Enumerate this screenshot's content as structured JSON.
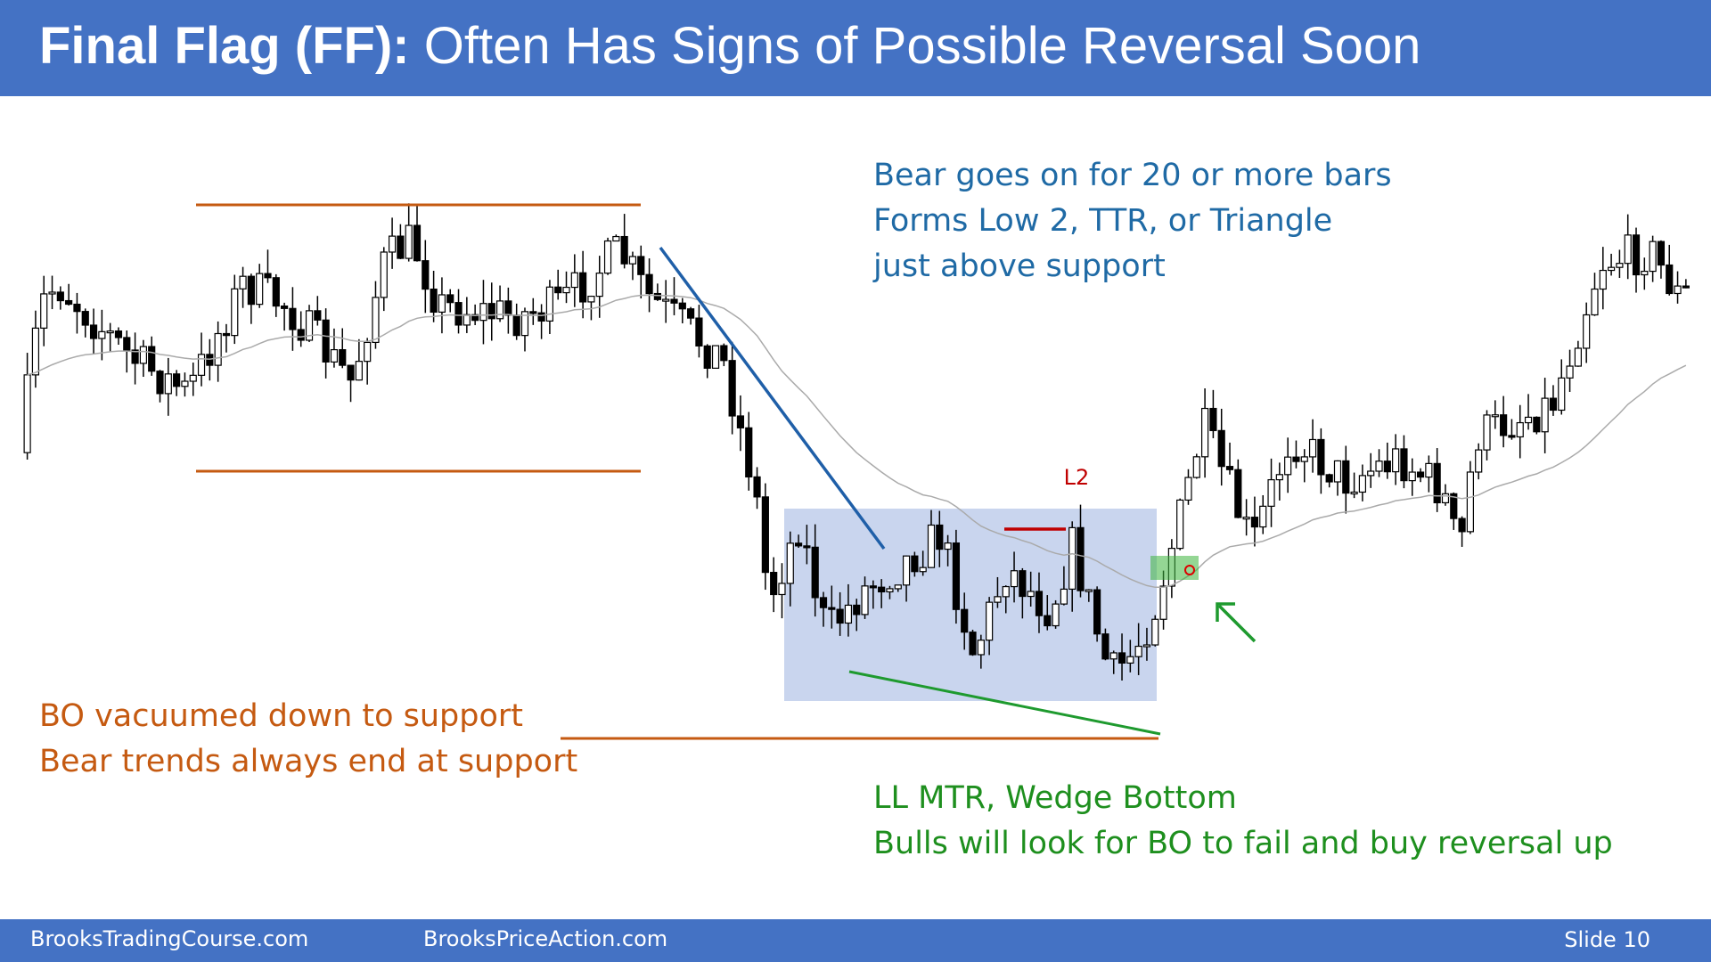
{
  "header": {
    "title_bold": "Final Flag (FF):",
    "title_rest": "Often Has Signs of Possible Reversal Soon"
  },
  "notes": {
    "bear": [
      "Bear goes on for 20 or more bars",
      "Forms Low 2, TTR, or Triangle",
      "just above support"
    ],
    "support": [
      "BO vacuumed down to support",
      "Bear trends always end at support"
    ],
    "bulls": [
      "LL MTR, Wedge Bottom",
      "Bulls will look for BO to fail and buy reversal up"
    ],
    "signal": "L2"
  },
  "footer": {
    "left": "BrooksTradingCourse.com",
    "middle": "BrooksPriceAction.com",
    "right": "Slide  10"
  }
}
